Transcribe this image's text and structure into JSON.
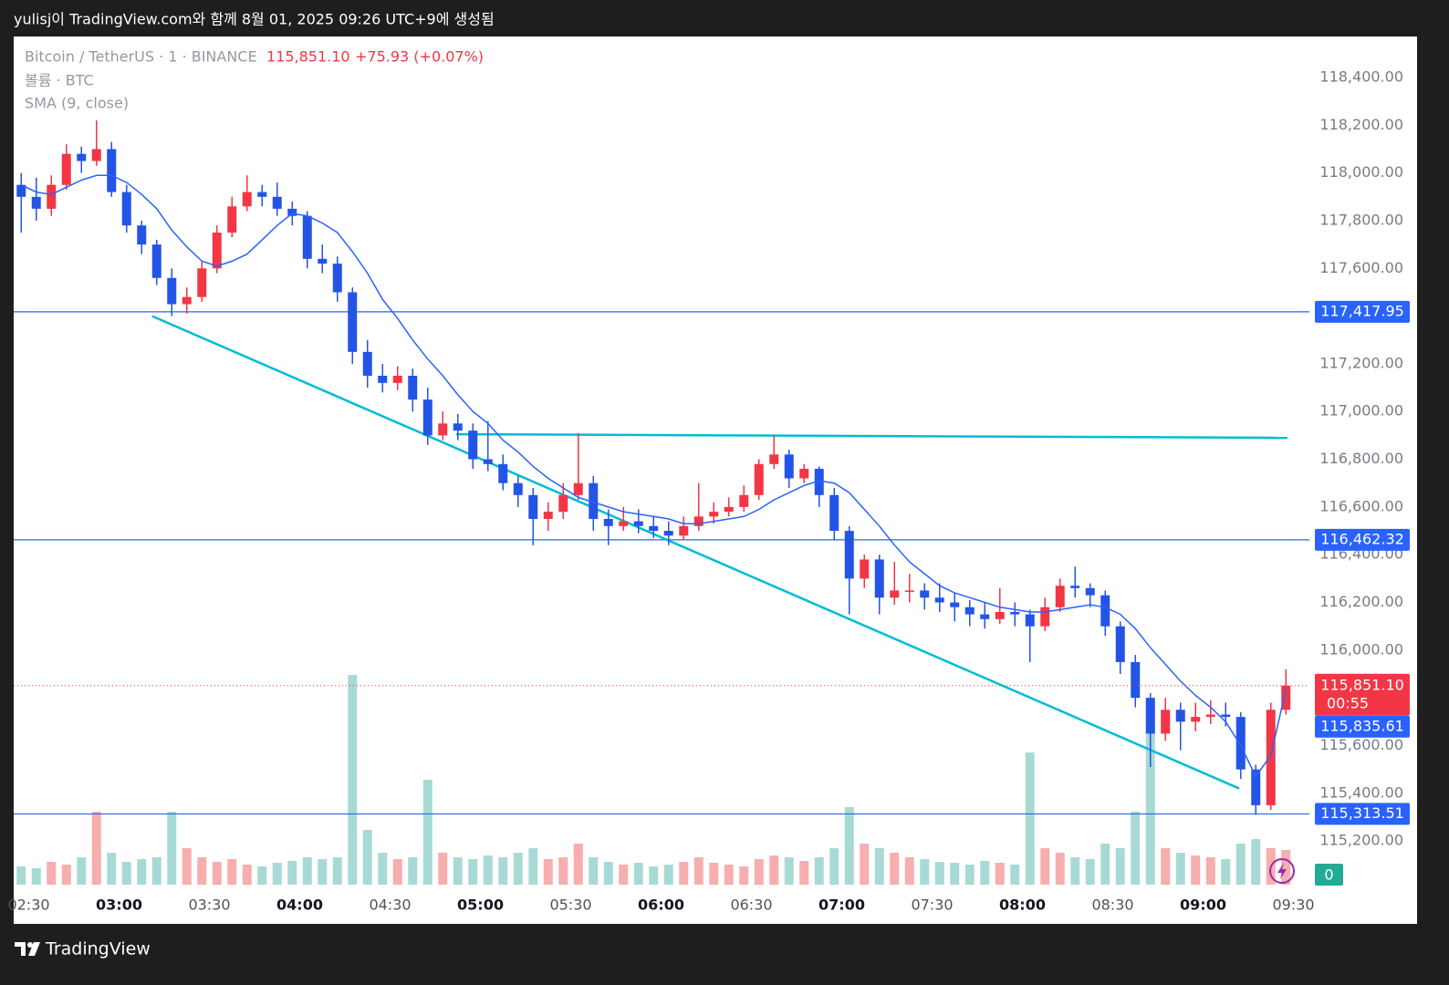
{
  "header": "yulisj이 TradingView.com와 함께 8월 01, 2025 09:26 UTC+9에 생성됨",
  "footer": "TradingView",
  "chart_data": {
    "type": "candlestick",
    "symbol": "Bitcoin / TetherUS · 1 · BINANCE",
    "last_price": {
      "value": 115851.1,
      "label": "115,851.10"
    },
    "change": "+75.93 (+0.07%)",
    "countdown": "00:55",
    "volume_label": "볼륨 · BTC",
    "sma_label": "SMA (9, close)",
    "sma_last": {
      "value": 115835.61,
      "label": "115,835.61"
    },
    "badge": 0,
    "x": [
      "02:25",
      "02:30",
      "02:35",
      "02:40",
      "02:45",
      "02:50",
      "02:55",
      "03:00",
      "03:05",
      "03:10",
      "03:15",
      "03:20",
      "03:25",
      "03:30",
      "03:35",
      "03:40",
      "03:45",
      "03:50",
      "03:55",
      "04:00",
      "04:05",
      "04:10",
      "04:15",
      "04:20",
      "04:25",
      "04:30",
      "04:35",
      "04:40",
      "04:45",
      "04:50",
      "04:55",
      "05:00",
      "05:05",
      "05:10",
      "05:15",
      "05:20",
      "05:25",
      "05:30",
      "05:35",
      "05:40",
      "05:45",
      "05:50",
      "05:55",
      "06:00",
      "06:05",
      "06:10",
      "06:15",
      "06:20",
      "06:25",
      "06:30",
      "06:35",
      "06:40",
      "06:45",
      "06:50",
      "06:55",
      "07:00",
      "07:05",
      "07:10",
      "07:15",
      "07:20",
      "07:25",
      "07:30",
      "07:35",
      "07:40",
      "07:45",
      "07:50",
      "07:55",
      "08:00",
      "08:05",
      "08:10",
      "08:15",
      "08:20",
      "08:25",
      "08:30",
      "08:35",
      "08:40",
      "08:45",
      "08:50",
      "08:55",
      "09:00",
      "09:05",
      "09:10",
      "09:15",
      "09:20",
      "09:25"
    ],
    "candles": [
      [
        117950,
        118000,
        117750,
        117900
      ],
      [
        117900,
        117980,
        117800,
        117850
      ],
      [
        117850,
        117990,
        117820,
        117950
      ],
      [
        117950,
        118120,
        117930,
        118080
      ],
      [
        118080,
        118110,
        118000,
        118050
      ],
      [
        118050,
        118220,
        118030,
        118100
      ],
      [
        118100,
        118130,
        117900,
        117920
      ],
      [
        117920,
        117950,
        117750,
        117780
      ],
      [
        117780,
        117800,
        117660,
        117700
      ],
      [
        117700,
        117720,
        117530,
        117560
      ],
      [
        117560,
        117600,
        117400,
        117450
      ],
      [
        117450,
        117520,
        117410,
        117480
      ],
      [
        117480,
        117630,
        117460,
        117600
      ],
      [
        117600,
        117780,
        117580,
        117750
      ],
      [
        117750,
        117900,
        117730,
        117860
      ],
      [
        117860,
        117990,
        117840,
        117920
      ],
      [
        117920,
        117950,
        117860,
        117900
      ],
      [
        117900,
        117960,
        117820,
        117850
      ],
      [
        117850,
        117880,
        117780,
        117820
      ],
      [
        117820,
        117840,
        117600,
        117640
      ],
      [
        117640,
        117700,
        117580,
        117620
      ],
      [
        117620,
        117650,
        117460,
        117500
      ],
      [
        117500,
        117520,
        117200,
        117250
      ],
      [
        117250,
        117300,
        117100,
        117150
      ],
      [
        117150,
        117200,
        117080,
        117120
      ],
      [
        117120,
        117190,
        117090,
        117150
      ],
      [
        117150,
        117180,
        117000,
        117050
      ],
      [
        117050,
        117100,
        116860,
        116900
      ],
      [
        116900,
        117000,
        116880,
        116950
      ],
      [
        116950,
        116990,
        116880,
        116920
      ],
      [
        116920,
        116950,
        116760,
        116800
      ],
      [
        116800,
        116960,
        116750,
        116780
      ],
      [
        116780,
        116820,
        116670,
        116700
      ],
      [
        116700,
        116730,
        116600,
        116650
      ],
      [
        116650,
        116680,
        116440,
        116550
      ],
      [
        116550,
        116620,
        116500,
        116580
      ],
      [
        116580,
        116700,
        116550,
        116650
      ],
      [
        116650,
        116910,
        116630,
        116700
      ],
      [
        116700,
        116730,
        116500,
        116550
      ],
      [
        116550,
        116590,
        116440,
        116520
      ],
      [
        116520,
        116600,
        116500,
        116540
      ],
      [
        116540,
        116590,
        116490,
        116520
      ],
      [
        116520,
        116560,
        116470,
        116500
      ],
      [
        116500,
        116540,
        116440,
        116480
      ],
      [
        116480,
        116560,
        116460,
        116520
      ],
      [
        116520,
        116700,
        116500,
        116560
      ],
      [
        116560,
        116620,
        116530,
        116580
      ],
      [
        116580,
        116640,
        116560,
        116600
      ],
      [
        116600,
        116690,
        116580,
        116650
      ],
      [
        116650,
        116800,
        116630,
        116780
      ],
      [
        116780,
        116900,
        116760,
        116820
      ],
      [
        116820,
        116840,
        116680,
        116720
      ],
      [
        116720,
        116780,
        116700,
        116760
      ],
      [
        116760,
        116770,
        116600,
        116650
      ],
      [
        116650,
        116680,
        116460,
        116500
      ],
      [
        116500,
        116520,
        116150,
        116300
      ],
      [
        116300,
        116400,
        116260,
        116380
      ],
      [
        116380,
        116400,
        116150,
        116220
      ],
      [
        116220,
        116370,
        116190,
        116250
      ],
      [
        116250,
        116320,
        116200,
        116250
      ],
      [
        116250,
        116280,
        116170,
        116220
      ],
      [
        116220,
        116280,
        116160,
        116200
      ],
      [
        116200,
        116240,
        116120,
        116180
      ],
      [
        116180,
        116210,
        116100,
        116150
      ],
      [
        116150,
        116200,
        116090,
        116130
      ],
      [
        116130,
        116260,
        116110,
        116160
      ],
      [
        116160,
        116200,
        116100,
        116150
      ],
      [
        116150,
        116170,
        115950,
        116100
      ],
      [
        116100,
        116220,
        116080,
        116180
      ],
      [
        116180,
        116300,
        116160,
        116270
      ],
      [
        116270,
        116350,
        116220,
        116260
      ],
      [
        116260,
        116280,
        116180,
        116230
      ],
      [
        116230,
        116250,
        116060,
        116100
      ],
      [
        116100,
        116120,
        115900,
        115950
      ],
      [
        115950,
        115980,
        115760,
        115800
      ],
      [
        115800,
        115820,
        115510,
        115650
      ],
      [
        115650,
        115800,
        115620,
        115750
      ],
      [
        115750,
        115780,
        115580,
        115700
      ],
      [
        115700,
        115780,
        115660,
        115720
      ],
      [
        115720,
        115790,
        115690,
        115730
      ],
      [
        115730,
        115780,
        115680,
        115720
      ],
      [
        115720,
        115740,
        115460,
        115500
      ],
      [
        115500,
        115520,
        115310,
        115350
      ],
      [
        115350,
        115780,
        115330,
        115750
      ],
      [
        115750,
        115920,
        115730,
        115851.1
      ]
    ],
    "volume": [
      20,
      18,
      25,
      22,
      30,
      80,
      35,
      25,
      28,
      30,
      80,
      40,
      30,
      25,
      28,
      22,
      20,
      24,
      26,
      30,
      28,
      30,
      230,
      60,
      35,
      28,
      30,
      115,
      35,
      30,
      28,
      32,
      30,
      35,
      40,
      28,
      30,
      45,
      30,
      25,
      22,
      24,
      20,
      22,
      25,
      30,
      24,
      22,
      20,
      28,
      32,
      30,
      26,
      30,
      40,
      85,
      45,
      40,
      35,
      30,
      28,
      25,
      24,
      22,
      26,
      24,
      22,
      145,
      40,
      35,
      30,
      28,
      45,
      40,
      80,
      205,
      40,
      35,
      32,
      30,
      28,
      45,
      50,
      40,
      38
    ],
    "sma": [
      117950,
      117920,
      117910,
      117940,
      117970,
      117990,
      117990,
      117960,
      117910,
      117850,
      117760,
      117690,
      117630,
      117610,
      117630,
      117660,
      117720,
      117780,
      117830,
      117820,
      117790,
      117750,
      117670,
      117580,
      117470,
      117390,
      117300,
      117220,
      117150,
      117070,
      117000,
      116950,
      116880,
      116830,
      116770,
      116720,
      116680,
      116640,
      116620,
      116600,
      116580,
      116570,
      116560,
      116550,
      116530,
      116530,
      116540,
      116550,
      116560,
      116590,
      116630,
      116660,
      116690,
      116710,
      116700,
      116660,
      116590,
      116520,
      116440,
      116370,
      116320,
      116270,
      116240,
      116220,
      116200,
      116180,
      116170,
      116160,
      116160,
      116170,
      116180,
      116190,
      116180,
      116150,
      116090,
      116010,
      115940,
      115870,
      115810,
      115760,
      115700,
      115600,
      115470,
      115560,
      115835.61
    ],
    "xlim": [
      "02:25",
      "09:35"
    ],
    "xticks": [
      "02:30",
      "03:00",
      "03:30",
      "04:00",
      "04:30",
      "05:00",
      "05:30",
      "06:00",
      "06:30",
      "07:00",
      "07:30",
      "08:00",
      "08:30",
      "09:00",
      "09:30"
    ],
    "ylim": [
      115017,
      118572
    ],
    "yticks": [
      {
        "value": 115200,
        "label": "115,200.00"
      },
      {
        "value": 115400,
        "label": "115,400.00"
      },
      {
        "value": 115600,
        "label": "115,600.00"
      },
      {
        "value": 115800,
        "label": "115,800.00"
      },
      {
        "value": 116000,
        "label": "116,000.00"
      },
      {
        "value": 116200,
        "label": "116,200.00"
      },
      {
        "value": 116400,
        "label": "116,400.00"
      },
      {
        "value": 116600,
        "label": "116,600.00"
      },
      {
        "value": 116800,
        "label": "116,800.00"
      },
      {
        "value": 117000,
        "label": "117,000.00"
      },
      {
        "value": 117200,
        "label": "117,200.00"
      },
      {
        "value": 117400,
        "label": "117,400.00"
      },
      {
        "value": 117600,
        "label": "117,600.00"
      },
      {
        "value": 117800,
        "label": "117,800.00"
      },
      {
        "value": 118000,
        "label": "118,000.00"
      },
      {
        "value": 118200,
        "label": "118,200.00"
      },
      {
        "value": 118400,
        "label": "118,400.00"
      }
    ],
    "hlines": [
      {
        "value": 117417.95,
        "label": "117,417.95"
      },
      {
        "value": 116462.32,
        "label": "116,462.32"
      },
      {
        "value": 115313.51,
        "label": "115,313.51"
      }
    ],
    "trendlines": [
      {
        "x": [
          "03:11",
          "09:12"
        ],
        "y": [
          117400,
          115420
        ]
      },
      {
        "x": [
          "04:52",
          "09:28"
        ],
        "y": [
          116905,
          116890
        ]
      }
    ],
    "up_color": "#f23645",
    "down_color": "#2454e6",
    "volume_up_color": "#f6a5a5",
    "volume_down_color": "#9fd6d0",
    "sma_color": "#2962ff",
    "hline_color": "#2962ff",
    "trendline_color": "#00bcd4",
    "grid": false
  }
}
